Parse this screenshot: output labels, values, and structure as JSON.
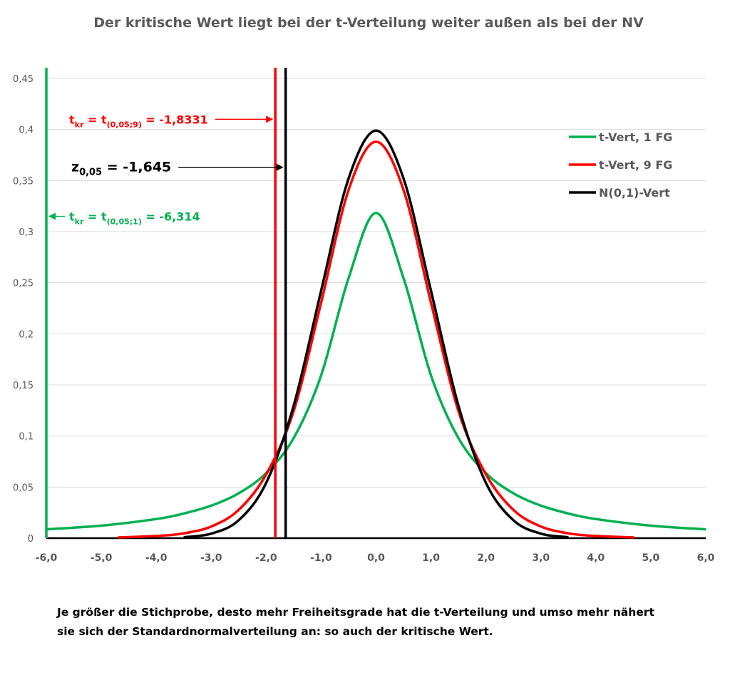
{
  "chart_data": {
    "type": "line",
    "title": "Der kritische Wert  liegt bei der t-Verteilung weiter außen als bei der NV",
    "xlabel": "",
    "ylabel": "",
    "xlim": [
      -6,
      6
    ],
    "ylim": [
      0,
      0.45
    ],
    "x_tick_labels": [
      "-6,0",
      "-5,0",
      "-4,0",
      "-3,0",
      "-2,0",
      "-1,0",
      "0,0",
      "1,0",
      "2,0",
      "3,0",
      "4,0",
      "5,0",
      "6,0"
    ],
    "y_tick_labels": [
      "0",
      "0,05",
      "0,1",
      "0,15",
      "0,2",
      "0,25",
      "0,3",
      "0,35",
      "0,4",
      "0,45"
    ],
    "grid": "horizontal",
    "legend_position": "top-right",
    "series": [
      {
        "name": "t-Vert, 1 FG",
        "color": "#00b050",
        "x": [
          -6,
          -5,
          -4,
          -3.5,
          -3,
          -2.5,
          -2,
          -1.5,
          -1,
          -0.5,
          0,
          0.5,
          1,
          1.5,
          2,
          2.5,
          3,
          3.5,
          4,
          5,
          6
        ],
        "y": [
          0.0086,
          0.0122,
          0.0187,
          0.0241,
          0.0318,
          0.0439,
          0.0637,
          0.0979,
          0.1592,
          0.2546,
          0.3183,
          0.2546,
          0.1592,
          0.0979,
          0.0637,
          0.0439,
          0.0318,
          0.0241,
          0.0187,
          0.0122,
          0.0086
        ]
      },
      {
        "name": "t-Vert, 9 FG",
        "color": "#ff0000",
        "x": [
          -4.7,
          -4,
          -3.5,
          -3,
          -2.5,
          -2,
          -1.5,
          -1,
          -0.5,
          0,
          0.5,
          1,
          1.5,
          2,
          2.5,
          3,
          3.5,
          4,
          4.7
        ],
        "y": [
          0.0007,
          0.0021,
          0.0047,
          0.0114,
          0.0276,
          0.0624,
          0.1243,
          0.2304,
          0.3409,
          0.388,
          0.3409,
          0.2304,
          0.1243,
          0.0624,
          0.0276,
          0.0114,
          0.0047,
          0.0021,
          0.0007
        ]
      },
      {
        "name": "N(0,1)-Vert",
        "color": "#000000",
        "x": [
          -3.5,
          -3,
          -2.5,
          -2,
          -1.5,
          -1,
          -0.5,
          0,
          0.5,
          1,
          1.5,
          2,
          2.5,
          3,
          3.5
        ],
        "y": [
          0.0009,
          0.0044,
          0.0175,
          0.054,
          0.1295,
          0.242,
          0.3521,
          0.3989,
          0.3521,
          0.242,
          0.1295,
          0.054,
          0.0175,
          0.0044,
          0.0009
        ]
      }
    ],
    "vertical_lines": [
      {
        "x": -6.0,
        "color": "#00b050"
      },
      {
        "x": -1.8331,
        "color": "#ff0000"
      },
      {
        "x": -1.645,
        "color": "#000000"
      }
    ],
    "annotations": [
      {
        "base": "t",
        "base_sub": "kr",
        "mid": " = t",
        "mid_sub": "(0,05;9)",
        "tail": " = -1,8331",
        "color": "#ff0000",
        "x": -1.8331,
        "y": 0.41
      },
      {
        "base": "z",
        "base_sub": "0,05",
        "mid": "",
        "mid_sub": "",
        "tail": " = -1,645",
        "color": "#000000",
        "x": -1.645,
        "y": 0.363
      },
      {
        "base": "t",
        "base_sub": "kr",
        "mid": " = t",
        "mid_sub": "(0,05;1)",
        "tail": " = -6,314",
        "color": "#00b050",
        "x": -6.0,
        "y": 0.315
      }
    ]
  },
  "caption": {
    "line1": "Je größer die Stichprobe, desto mehr Freiheitsgrade hat die t-Verteilung und umso mehr nähert",
    "line2": "sie sich der Standardnormalverteilung an: so auch der kritische Wert."
  }
}
